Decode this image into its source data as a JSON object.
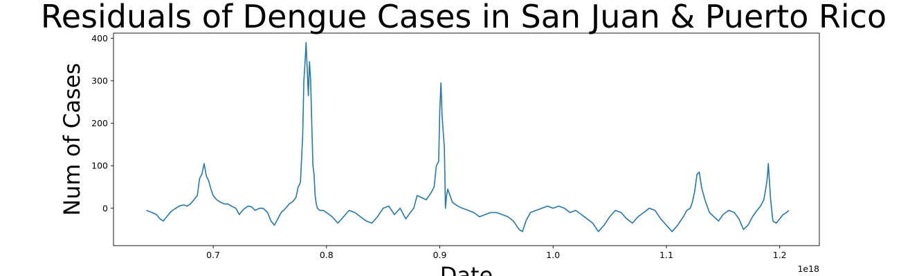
{
  "chart_data": {
    "type": "line",
    "title": "Residuals of Dengue Cases in San Juan & Puerto Rico",
    "xlabel": "Date",
    "ylabel": "Num of Cases",
    "x_offset_label": "1e18",
    "xlim": [
      0.612,
      1.235
    ],
    "ylim": [
      -88,
      412
    ],
    "x_ticks": [
      0.7,
      0.8,
      0.9,
      1.0,
      1.1,
      1.2
    ],
    "x_tick_labels": [
      "0.7",
      "0.8",
      "0.9",
      "1.0",
      "1.1",
      "1.2"
    ],
    "y_ticks": [
      0,
      100,
      200,
      300,
      400
    ],
    "y_tick_labels": [
      "0",
      "100",
      "200",
      "300",
      "400"
    ],
    "grid": false,
    "legend": "none",
    "series": [
      {
        "color": "#1f77b4",
        "x": [
          0.641,
          0.646,
          0.65,
          0.653,
          0.656,
          0.659,
          0.662,
          0.664,
          0.667,
          0.67,
          0.674,
          0.677,
          0.68,
          0.683,
          0.686,
          0.688,
          0.69,
          0.692,
          0.694,
          0.696,
          0.698,
          0.7,
          0.703,
          0.706,
          0.71,
          0.713,
          0.716,
          0.72,
          0.723,
          0.726,
          0.728,
          0.731,
          0.734,
          0.737,
          0.741,
          0.744,
          0.748,
          0.751,
          0.754,
          0.757,
          0.76,
          0.764,
          0.767,
          0.77,
          0.773,
          0.775,
          0.777,
          0.779,
          0.78,
          0.781,
          0.782,
          0.783,
          0.784,
          0.785,
          0.786,
          0.787,
          0.788,
          0.789,
          0.79,
          0.791,
          0.792,
          0.794,
          0.797,
          0.8,
          0.805,
          0.81,
          0.815,
          0.82,
          0.825,
          0.83,
          0.835,
          0.84,
          0.845,
          0.85,
          0.855,
          0.86,
          0.865,
          0.87,
          0.874,
          0.877,
          0.88,
          0.884,
          0.888,
          0.892,
          0.895,
          0.897,
          0.899,
          0.9,
          0.901,
          0.902,
          0.903,
          0.904,
          0.905,
          0.906,
          0.907,
          0.909,
          0.911,
          0.913,
          0.916,
          0.92,
          0.925,
          0.93,
          0.935,
          0.94,
          0.945,
          0.95,
          0.955,
          0.96,
          0.965,
          0.97,
          0.973,
          0.976,
          0.98,
          0.985,
          0.99,
          0.995,
          1.0,
          1.005,
          1.01,
          1.015,
          1.02,
          1.025,
          1.03,
          1.035,
          1.04,
          1.045,
          1.05,
          1.055,
          1.06,
          1.065,
          1.07,
          1.075,
          1.08,
          1.085,
          1.09,
          1.095,
          1.1,
          1.105,
          1.11,
          1.115,
          1.118,
          1.121,
          1.123,
          1.125,
          1.127,
          1.129,
          1.131,
          1.134,
          1.138,
          1.142,
          1.146,
          1.15,
          1.155,
          1.16,
          1.164,
          1.168,
          1.172,
          1.176,
          1.18,
          1.183,
          1.186,
          1.188,
          1.189,
          1.19,
          1.191,
          1.192,
          1.194,
          1.197,
          1.2,
          1.203,
          1.206,
          1.208
        ],
        "y": [
          -5,
          -10,
          -15,
          -25,
          -30,
          -20,
          -10,
          -5,
          0,
          5,
          8,
          5,
          10,
          20,
          30,
          70,
          80,
          105,
          75,
          65,
          45,
          30,
          20,
          15,
          10,
          10,
          5,
          0,
          -15,
          -5,
          0,
          5,
          3,
          -5,
          0,
          0,
          -10,
          -30,
          -40,
          -25,
          -10,
          0,
          10,
          15,
          25,
          50,
          60,
          170,
          300,
          340,
          390,
          325,
          265,
          345,
          300,
          200,
          100,
          80,
          30,
          10,
          0,
          -5,
          -5,
          -10,
          -20,
          -35,
          -20,
          -5,
          -10,
          -20,
          -30,
          -35,
          -20,
          0,
          5,
          -15,
          0,
          -25,
          -10,
          0,
          30,
          25,
          20,
          35,
          50,
          100,
          110,
          230,
          295,
          220,
          180,
          145,
          0,
          30,
          45,
          30,
          15,
          10,
          5,
          0,
          -5,
          -10,
          -20,
          -15,
          -10,
          -10,
          -15,
          -20,
          -30,
          -50,
          -55,
          -30,
          -10,
          -5,
          0,
          5,
          0,
          5,
          0,
          -10,
          -5,
          -15,
          -25,
          -35,
          -55,
          -40,
          -20,
          -5,
          -10,
          -25,
          -35,
          -20,
          -10,
          0,
          -5,
          -25,
          -40,
          -55,
          -40,
          -20,
          -5,
          0,
          15,
          40,
          80,
          85,
          50,
          20,
          -10,
          -20,
          -30,
          -15,
          -5,
          -10,
          -25,
          -50,
          -40,
          -20,
          -5,
          5,
          20,
          50,
          70,
          105,
          60,
          20,
          -30,
          -35,
          -25,
          -15,
          -10,
          -5
        ]
      }
    ]
  }
}
